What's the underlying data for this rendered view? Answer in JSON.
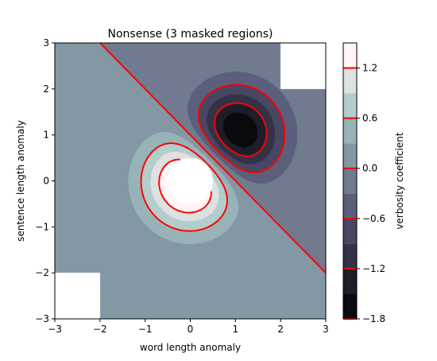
{
  "chart_data": {
    "type": "contour",
    "title": "Nonsense (3 masked regions)",
    "xlabel": "word length anomaly",
    "ylabel": "sentence length anomaly",
    "colorbar_label": "verbosity coefficient",
    "xlim": [
      -3,
      3
    ],
    "ylim": [
      -3,
      3
    ],
    "xticks": [
      -3,
      -2,
      -1,
      0,
      1,
      2,
      3
    ],
    "yticks": [
      -3,
      -2,
      -1,
      0,
      1,
      2,
      3
    ],
    "xtick_labels": [
      "−3",
      "−2",
      "−1",
      "0",
      "1",
      "2",
      "3"
    ],
    "ytick_labels": [
      "−3",
      "−2",
      "−1",
      "0",
      "1",
      "2",
      "3"
    ],
    "colorbar_ticks": [
      1.2,
      0.6,
      0.0,
      -0.6,
      -1.2,
      -1.8
    ],
    "colorbar_tick_labels": [
      "1.2",
      "0.6",
      "0.0",
      "−0.6",
      "−1.2",
      "−1.8"
    ],
    "filled_levels": [
      -1.8,
      -1.5,
      -1.2,
      -0.9,
      -0.6,
      -0.3,
      0.0,
      0.3,
      0.6,
      0.9,
      1.2,
      1.5
    ],
    "line_levels": [
      -1.8,
      -1.2,
      -0.6,
      0.0,
      0.6,
      1.2
    ],
    "line_color": "#ff0000",
    "negative_linestyle": "dashed",
    "colormap": "bone",
    "masked_regions": [
      {
        "name": "top-right corner",
        "x": [
          2,
          3
        ],
        "y": [
          2,
          3
        ]
      },
      {
        "name": "bottom-left corner",
        "x": [
          -3,
          -2
        ],
        "y": [
          -3,
          -2
        ]
      },
      {
        "name": "central disc",
        "center": [
          0,
          0
        ],
        "radius": 0.5
      }
    ],
    "field": {
      "formula": "(exp(-x^2-y^2) - exp(-(x-1)^2-(y-1)^2)) * 2",
      "grid_step": 0.025
    }
  }
}
